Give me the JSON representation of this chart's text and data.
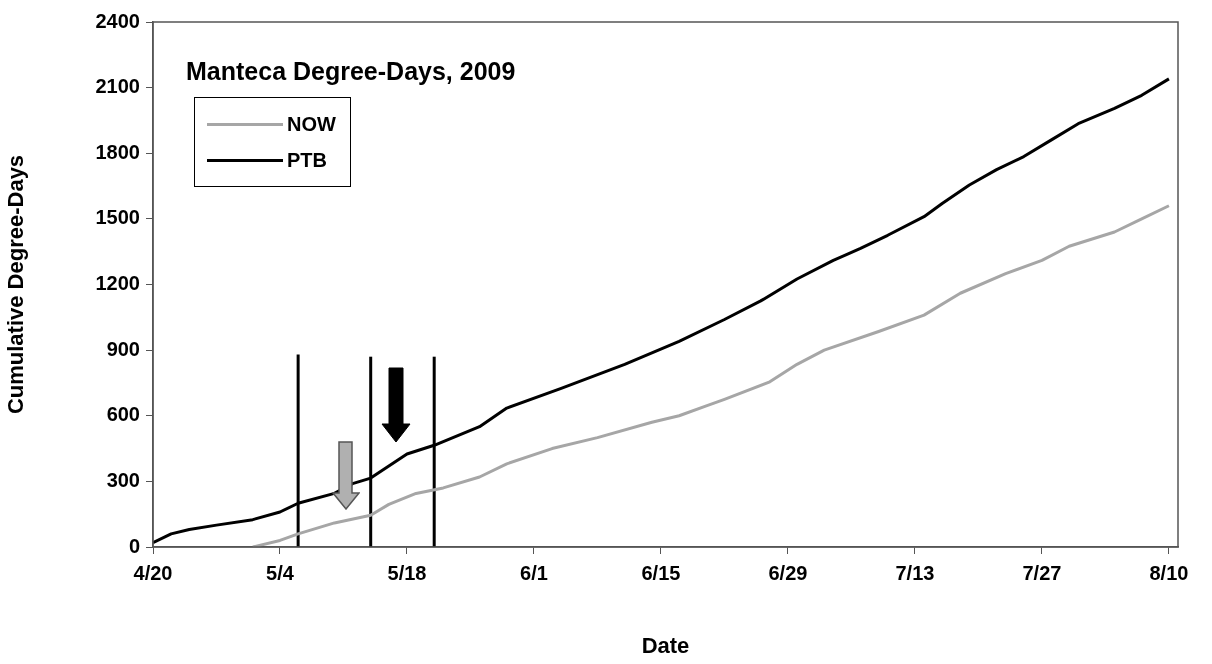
{
  "chart_data": {
    "type": "line",
    "title": "Manteca Degree-Days, 2009",
    "xlabel": "Date",
    "ylabel": "Cumulative Degree-Days",
    "xlim": [
      "2009-04-20",
      "2009-08-11"
    ],
    "xticks": [
      {
        "value": "2009-04-20",
        "label": "4/20"
      },
      {
        "value": "2009-05-04",
        "label": "5/4"
      },
      {
        "value": "2009-05-18",
        "label": "5/18"
      },
      {
        "value": "2009-06-01",
        "label": "6/1"
      },
      {
        "value": "2009-06-15",
        "label": "6/15"
      },
      {
        "value": "2009-06-29",
        "label": "6/29"
      },
      {
        "value": "2009-07-13",
        "label": "7/13"
      },
      {
        "value": "2009-07-27",
        "label": "7/27"
      },
      {
        "value": "2009-08-10",
        "label": "8/10"
      }
    ],
    "ylim": [
      0,
      2400
    ],
    "yticks": [
      0,
      300,
      600,
      900,
      1200,
      1500,
      1800,
      2100,
      2400
    ],
    "grid": false,
    "legend": "top left",
    "marker": "none",
    "line_style": "solid",
    "series": [
      {
        "name": "NOW",
        "color": "#a6a6a6",
        "x": [
          "2009-05-01",
          "2009-05-04",
          "2009-05-06",
          "2009-05-10",
          "2009-05-14",
          "2009-05-16",
          "2009-05-19",
          "2009-05-22",
          "2009-05-26",
          "2009-05-29",
          "2009-06-03",
          "2009-06-08",
          "2009-06-14",
          "2009-06-17",
          "2009-06-20",
          "2009-06-22",
          "2009-06-27",
          "2009-06-30",
          "2009-07-03",
          "2009-07-09",
          "2009-07-14",
          "2009-07-18",
          "2009-07-23",
          "2009-07-27",
          "2009-07-30",
          "2009-08-04",
          "2009-08-07",
          "2009-08-10"
        ],
        "values": [
          0,
          30,
          60,
          110,
          145,
          195,
          245,
          270,
          320,
          380,
          450,
          500,
          570,
          600,
          645,
          675,
          755,
          835,
          900,
          985,
          1060,
          1160,
          1250,
          1310,
          1375,
          1440,
          1500,
          1560
        ]
      },
      {
        "name": "PTB",
        "color": "#000000",
        "x": [
          "2009-04-20",
          "2009-04-22",
          "2009-04-24",
          "2009-04-27",
          "2009-05-01",
          "2009-05-04",
          "2009-05-06",
          "2009-05-10",
          "2009-05-12",
          "2009-05-14",
          "2009-05-18",
          "2009-05-21",
          "2009-05-26",
          "2009-05-29",
          "2009-06-04",
          "2009-06-11",
          "2009-06-17",
          "2009-06-22",
          "2009-06-26",
          "2009-06-30",
          "2009-07-04",
          "2009-07-07",
          "2009-07-10",
          "2009-07-14",
          "2009-07-16",
          "2009-07-19",
          "2009-07-22",
          "2009-07-25",
          "2009-07-28",
          "2009-07-31",
          "2009-08-04",
          "2009-08-07",
          "2009-08-10"
        ],
        "values": [
          20,
          60,
          80,
          100,
          125,
          160,
          200,
          245,
          290,
          315,
          425,
          465,
          550,
          635,
          725,
          835,
          940,
          1040,
          1125,
          1225,
          1310,
          1365,
          1425,
          1510,
          1570,
          1655,
          1725,
          1785,
          1860,
          1935,
          2005,
          2065,
          2140
        ]
      },
      {
        "color": "#000000",
        "x": [
          "2009-05-06",
          "2009-05-06"
        ],
        "values": [
          0,
          880
        ]
      },
      {
        "color": "#000000",
        "x": [
          "2009-05-14",
          "2009-05-14"
        ],
        "values": [
          0,
          870
        ]
      },
      {
        "color": "#000000",
        "x": [
          "2009-05-21",
          "2009-05-21"
        ],
        "values": [
          0,
          870
        ]
      }
    ]
  }
}
